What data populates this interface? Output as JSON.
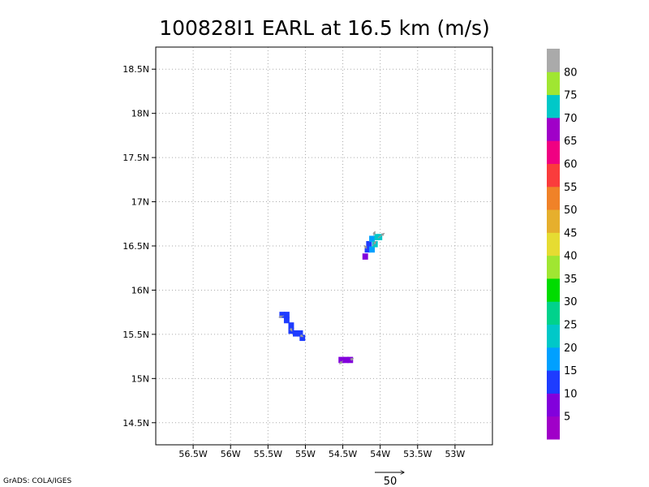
{
  "chart_data": {
    "type": "heatmap",
    "title": "100828I1 EARL at 16.5 km (m/s)",
    "xlim": [
      -57.0,
      -52.5
    ],
    "ylim": [
      14.25,
      18.75
    ],
    "x_ticks": [
      {
        "value": -56.5,
        "label": "56.5W"
      },
      {
        "value": -56.0,
        "label": "56W"
      },
      {
        "value": -55.5,
        "label": "55.5W"
      },
      {
        "value": -55.0,
        "label": "55W"
      },
      {
        "value": -54.5,
        "label": "54.5W"
      },
      {
        "value": -54.0,
        "label": "54W"
      },
      {
        "value": -53.5,
        "label": "53.5W"
      },
      {
        "value": -53.0,
        "label": "53W"
      }
    ],
    "y_ticks": [
      {
        "value": 14.5,
        "label": "14.5N"
      },
      {
        "value": 15.0,
        "label": "15N"
      },
      {
        "value": 15.5,
        "label": "15.5N"
      },
      {
        "value": 16.0,
        "label": "16N"
      },
      {
        "value": 16.5,
        "label": "16.5N"
      },
      {
        "value": 17.0,
        "label": "17N"
      },
      {
        "value": 17.5,
        "label": "17.5N"
      },
      {
        "value": 18.0,
        "label": "18N"
      },
      {
        "value": 18.5,
        "label": "18.5N"
      }
    ],
    "grid": true,
    "colorbar": {
      "colors": [
        "#a000c8",
        "#8200dc",
        "#1e3cff",
        "#00a0ff",
        "#00c8c8",
        "#00d28c",
        "#00dc00",
        "#a0e632",
        "#e6dc32",
        "#e6af2d",
        "#f08228",
        "#fa3c3c",
        "#f00082",
        "#a000c8",
        "#00c8c8",
        "#a0e632",
        "#aaaaaa"
      ],
      "labels": [
        "5",
        "10",
        "15",
        "20",
        "25",
        "30",
        "35",
        "40",
        "45",
        "50",
        "55",
        "60",
        "65",
        "70",
        "75",
        "80"
      ]
    },
    "cells": [
      {
        "lon": -55.31,
        "lat": 15.72,
        "color": "#1e3cff"
      },
      {
        "lon": -55.25,
        "lat": 15.72,
        "color": "#1e3cff"
      },
      {
        "lon": -55.25,
        "lat": 15.66,
        "color": "#1e3cff"
      },
      {
        "lon": -55.19,
        "lat": 15.6,
        "color": "#1e3cff"
      },
      {
        "lon": -55.19,
        "lat": 15.54,
        "color": "#1e3cff"
      },
      {
        "lon": -55.13,
        "lat": 15.51,
        "color": "#1e3cff"
      },
      {
        "lon": -55.07,
        "lat": 15.51,
        "color": "#1e3cff"
      },
      {
        "lon": -55.04,
        "lat": 15.46,
        "color": "#1e3cff"
      },
      {
        "lon": -54.52,
        "lat": 15.21,
        "color": "#8200dc"
      },
      {
        "lon": -54.46,
        "lat": 15.21,
        "color": "#8200dc"
      },
      {
        "lon": -54.4,
        "lat": 15.21,
        "color": "#8200dc"
      },
      {
        "lon": -54.2,
        "lat": 16.38,
        "color": "#8200dc"
      },
      {
        "lon": -54.17,
        "lat": 16.46,
        "color": "#1e3cff"
      },
      {
        "lon": -54.15,
        "lat": 16.52,
        "color": "#1e3cff"
      },
      {
        "lon": -54.11,
        "lat": 16.46,
        "color": "#00a0ff"
      },
      {
        "lon": -54.11,
        "lat": 16.58,
        "color": "#00a0ff"
      },
      {
        "lon": -54.07,
        "lat": 16.52,
        "color": "#00c8c8"
      },
      {
        "lon": -54.04,
        "lat": 16.6,
        "color": "#00c8c8"
      },
      {
        "lon": -54.01,
        "lat": 16.6,
        "color": "#00c8c8"
      }
    ],
    "vectors": [
      {
        "lon": -55.29,
        "lat": 15.71,
        "u": -6,
        "v": -2
      },
      {
        "lon": -55.2,
        "lat": 15.57,
        "u": 2,
        "v": -4
      },
      {
        "lon": -55.07,
        "lat": 15.49,
        "u": 4,
        "v": -2
      },
      {
        "lon": -54.5,
        "lat": 15.2,
        "u": -4,
        "v": -4
      },
      {
        "lon": -54.4,
        "lat": 15.21,
        "u": 4,
        "v": 2
      },
      {
        "lon": -54.18,
        "lat": 16.47,
        "u": -3,
        "v": 4
      },
      {
        "lon": -54.1,
        "lat": 16.5,
        "u": 4,
        "v": 6
      },
      {
        "lon": -54.03,
        "lat": 16.59,
        "u": 8,
        "v": 6
      },
      {
        "lon": -54.09,
        "lat": 16.62,
        "u": 2,
        "v": 5
      }
    ],
    "reference_vector_label": "50"
  },
  "credit": "GrADS: COLA/IGES"
}
